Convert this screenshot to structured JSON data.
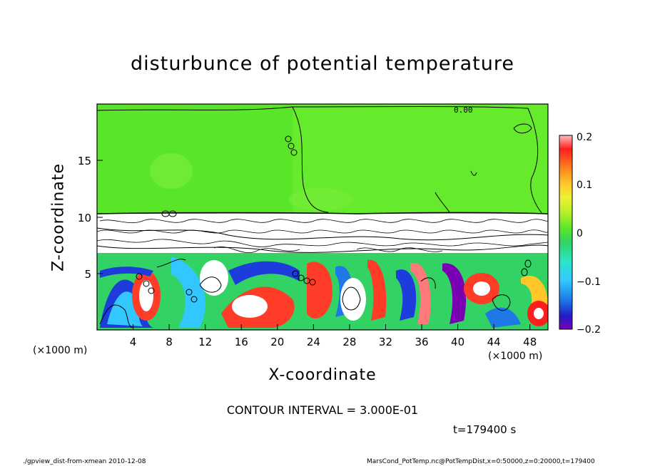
{
  "chart_data": {
    "type": "heatmap",
    "title": "disturbunce of potential temperature",
    "xlabel": "X-coordinate",
    "ylabel": "Z-coordinate",
    "x_unit": "(×1000 m)",
    "xlim": [
      0,
      50
    ],
    "ylim": [
      0,
      20
    ],
    "x_ticks": [
      "4",
      "8",
      "12",
      "16",
      "20",
      "24",
      "28",
      "32",
      "36",
      "40",
      "44",
      "48"
    ],
    "y_ticks": [
      "5",
      "10",
      "15"
    ],
    "colorbar": {
      "min": -0.2,
      "max": 0.2,
      "tick_labels": [
        "0.2",
        "0.1",
        "0",
        "−0.1",
        "−0.2"
      ],
      "colors": [
        "#7a00b4",
        "#1e1ec8",
        "#1e78e6",
        "#32c8ff",
        "#28e6c8",
        "#32d264",
        "#5ae628",
        "#b4f028",
        "#f0f032",
        "#ffc828",
        "#ff8c1e",
        "#ff501e",
        "#ff1e1e",
        "#ff7a7a",
        "#ffbcbc"
      ]
    },
    "grid": false,
    "legend": "none",
    "contour_label": "0.00",
    "colors": {
      "upper_region": "#5ae628",
      "positive": "#ff3c28",
      "negative": "#1e3cdc"
    }
  },
  "contour_interval": "CONTOUR INTERVAL = 3.000E-01",
  "time_label": "t=179400 s",
  "footer_left": "./gpview_dist-from-xmean  2010-12-08",
  "footer_right": "MarsCond_PotTemp.nc@PotTempDist,x=0:50000,z=0:20000,t=179400"
}
